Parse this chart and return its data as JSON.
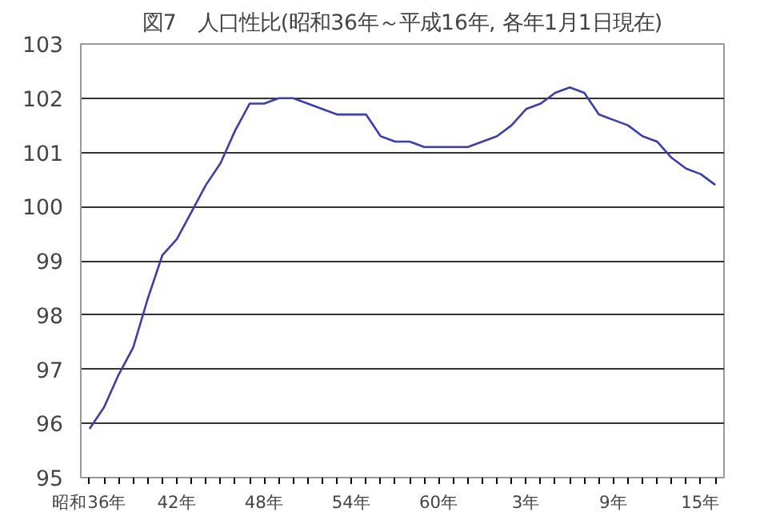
{
  "chart_data": {
    "type": "line",
    "title": "図7　人口性比(昭和36年～平成16年, 各年1月1日現在)",
    "categories": [
      "昭和36年",
      null,
      null,
      null,
      null,
      null,
      "42年",
      null,
      null,
      null,
      null,
      null,
      "48年",
      null,
      null,
      null,
      null,
      null,
      "54年",
      null,
      null,
      null,
      null,
      null,
      "60年",
      null,
      null,
      null,
      null,
      null,
      "3年",
      null,
      null,
      null,
      null,
      null,
      "9年",
      null,
      null,
      null,
      null,
      null,
      "15年",
      null
    ],
    "series": [
      {
        "color": "#3c3cb4",
        "values": [
          95.9,
          96.3,
          96.9,
          97.4,
          98.3,
          99.1,
          99.4,
          99.9,
          100.4,
          100.8,
          101.4,
          101.9,
          101.9,
          102.0,
          102.0,
          101.9,
          101.8,
          101.7,
          101.7,
          101.7,
          101.3,
          101.2,
          101.2,
          101.1,
          101.1,
          101.1,
          101.1,
          101.2,
          101.3,
          101.5,
          101.8,
          101.9,
          102.1,
          102.2,
          102.1,
          101.7,
          101.6,
          101.5,
          101.3,
          101.2,
          100.9,
          100.7,
          100.6,
          100.4
        ]
      }
    ],
    "ylim": [
      95,
      103
    ],
    "yticks": [
      95,
      96,
      97,
      98,
      99,
      100,
      101,
      102,
      103
    ],
    "grid": "y",
    "marker": "none",
    "line_style": "solid"
  }
}
